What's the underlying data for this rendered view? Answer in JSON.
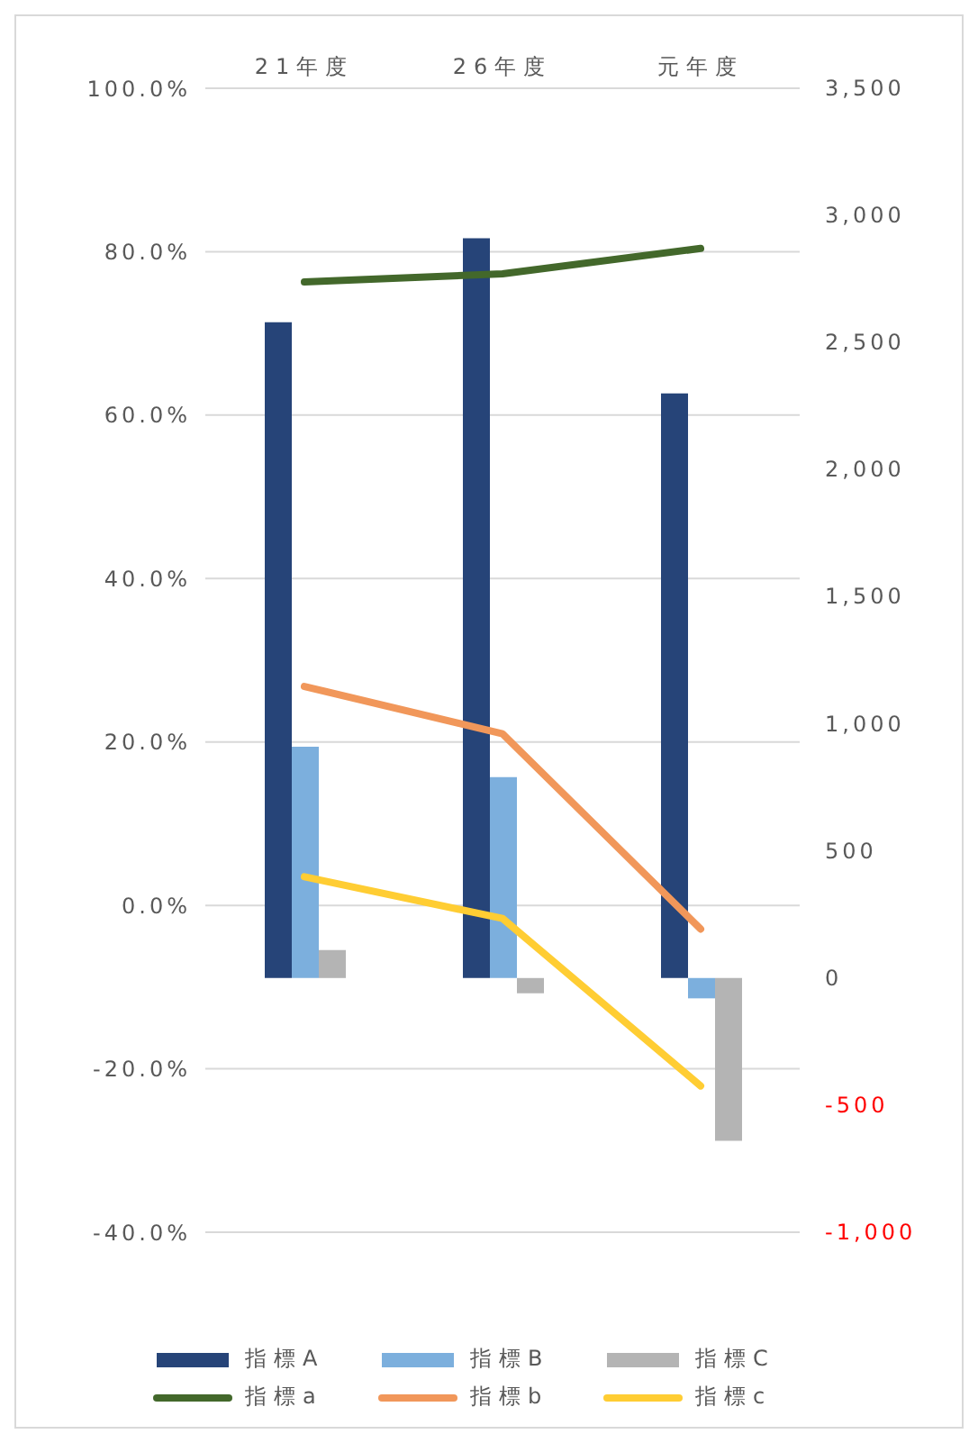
{
  "chart_data": {
    "type": "bar",
    "categories": [
      "21年度",
      "26年度",
      "元年度"
    ],
    "series": [
      {
        "name": "指標A",
        "axis": "y2",
        "color": "#264478",
        "values": [
          2580,
          2910,
          2300
        ]
      },
      {
        "name": "指標B",
        "axis": "y2",
        "color": "#7cafdd",
        "values": [
          910,
          790,
          -80
        ]
      },
      {
        "name": "指標C",
        "axis": "y2",
        "color": "#b4b4b4",
        "values": [
          110,
          -60,
          -640
        ]
      },
      {
        "name": "指標a",
        "type": "line",
        "axis": "y",
        "color": "#43682b",
        "values": [
          76.3,
          77.3,
          80.4
        ]
      },
      {
        "name": "指標b",
        "type": "line",
        "axis": "y",
        "color": "#f1975a",
        "values": [
          26.8,
          21.0,
          -2.9
        ]
      },
      {
        "name": "指標c",
        "type": "line",
        "axis": "y",
        "color": "#ffcd33",
        "values": [
          3.5,
          -1.6,
          -22.1
        ]
      }
    ],
    "ylim": [
      -40,
      100
    ],
    "yticks": [
      {
        "value": -40,
        "label": "-40.0%"
      },
      {
        "value": -20,
        "label": "-20.0%"
      },
      {
        "value": 0,
        "label": "0.0%"
      },
      {
        "value": 20,
        "label": "20.0%"
      },
      {
        "value": 40,
        "label": "40.0%"
      },
      {
        "value": 60,
        "label": "60.0%"
      },
      {
        "value": 80,
        "label": "80.0%"
      },
      {
        "value": 100,
        "label": "100.0%"
      }
    ],
    "y2lim": [
      -1000,
      3500
    ],
    "y2ticks": [
      {
        "value": -1000,
        "label": "-1,000"
      },
      {
        "value": -500,
        "label": "-500"
      },
      {
        "value": 0,
        "label": "0"
      },
      {
        "value": 500,
        "label": "500"
      },
      {
        "value": 1000,
        "label": "1,000"
      },
      {
        "value": 1500,
        "label": "1,500"
      },
      {
        "value": 2000,
        "label": "2,000"
      },
      {
        "value": 2500,
        "label": "2,500"
      },
      {
        "value": 3000,
        "label": "3,000"
      },
      {
        "value": 3500,
        "label": "3,500"
      }
    ],
    "grid": "y",
    "legend": "bottom",
    "marker": "none",
    "line_style": "solid"
  }
}
